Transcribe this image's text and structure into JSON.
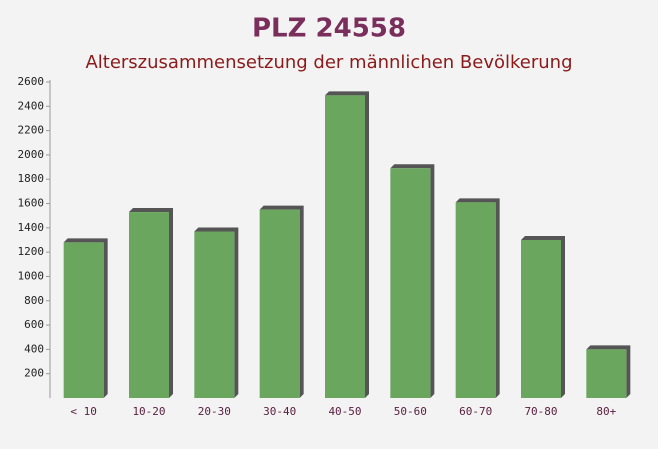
{
  "chart_data": {
    "type": "bar",
    "title": "PLZ 24558",
    "subtitle": "Alterszusammensetzung der männlichen Bevölkerung",
    "categories": [
      "< 10",
      "10-20",
      "20-30",
      "30-40",
      "40-50",
      "50-60",
      "60-70",
      "70-80",
      "80+"
    ],
    "values": [
      1280,
      1530,
      1370,
      1550,
      2490,
      1890,
      1610,
      1300,
      400
    ],
    "color": "#6aa65e",
    "ylim": [
      0,
      2600
    ],
    "yticks": [
      200,
      400,
      600,
      800,
      1000,
      1200,
      1400,
      1600,
      1800,
      2000,
      2200,
      2400,
      2600
    ]
  }
}
